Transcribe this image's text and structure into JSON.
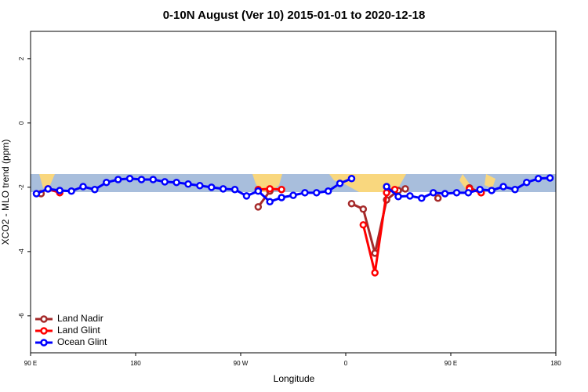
{
  "chart_data": {
    "type": "line",
    "title": "0-10N August (Ver 10)   2015-01-01 to 2020-12-18",
    "xlabel": "Longitude",
    "ylabel": "XCO2 - MLO trend (ppm)",
    "xlim": [
      90,
      540
    ],
    "ylim": [
      -7.15,
      2.85
    ],
    "xticks": [
      {
        "value": 90,
        "label": "90 E"
      },
      180,
      {
        "value": 270,
        "label": "90 W"
      },
      {
        "value": 360,
        "label": "0"
      },
      {
        "value": 450,
        "label": "90 E"
      },
      {
        "value": 540,
        "label": "180"
      }
    ],
    "yticks": [
      -6,
      -4,
      -2,
      0,
      2
    ],
    "legend": "bottom-left",
    "series": [
      {
        "name": "Land Nadir",
        "color": "#a52a2a",
        "x": [
          99,
          null,
          285,
          295,
          null,
          365,
          375,
          385,
          395,
          405,
          411,
          null,
          439,
          null,
          466,
          476
        ],
        "values": [
          -2.2,
          null,
          -2.61,
          -2.12,
          null,
          -2.51,
          -2.68,
          -4.05,
          -2.39,
          -2.1,
          -2.05,
          null,
          -2.34,
          null,
          -2.02,
          -2.17
        ]
      },
      {
        "name": "Land Glint",
        "color": "#ff0000",
        "x": [
          105,
          115,
          null,
          285,
          295,
          305,
          null,
          375,
          385,
          395,
          402,
          null,
          466,
          476
        ],
        "values": [
          -2.05,
          -2.17,
          null,
          -2.07,
          -2.05,
          -2.07,
          null,
          -3.17,
          -4.66,
          -2.17,
          -2.07,
          null,
          -2.05,
          -2.17
        ]
      },
      {
        "name": "Ocean Glint",
        "color": "#0000ff",
        "x": [
          95,
          105,
          115,
          125,
          135,
          145,
          155,
          165,
          175,
          185,
          195,
          205,
          215,
          225,
          235,
          245,
          255,
          265,
          275,
          285,
          295,
          305,
          315,
          325,
          335,
          345,
          355,
          365,
          null,
          395,
          405,
          415,
          425,
          435,
          445,
          455,
          465,
          475,
          485,
          495,
          505,
          515,
          525,
          535
        ],
        "values": [
          -2.2,
          -2.05,
          -2.1,
          -2.12,
          -1.98,
          -2.07,
          -1.85,
          -1.76,
          -1.73,
          -1.76,
          -1.76,
          -1.83,
          -1.85,
          -1.9,
          -1.95,
          -2.0,
          -2.05,
          -2.07,
          -2.27,
          -2.12,
          -2.45,
          -2.32,
          -2.25,
          -2.17,
          -2.17,
          -2.12,
          -1.88,
          -1.73,
          null,
          -1.98,
          -2.29,
          -2.27,
          -2.34,
          -2.17,
          -2.2,
          -2.17,
          -2.17,
          -2.07,
          -2.1,
          -1.98,
          -2.07,
          -1.85,
          -1.73,
          -1.71
        ]
      }
    ]
  }
}
